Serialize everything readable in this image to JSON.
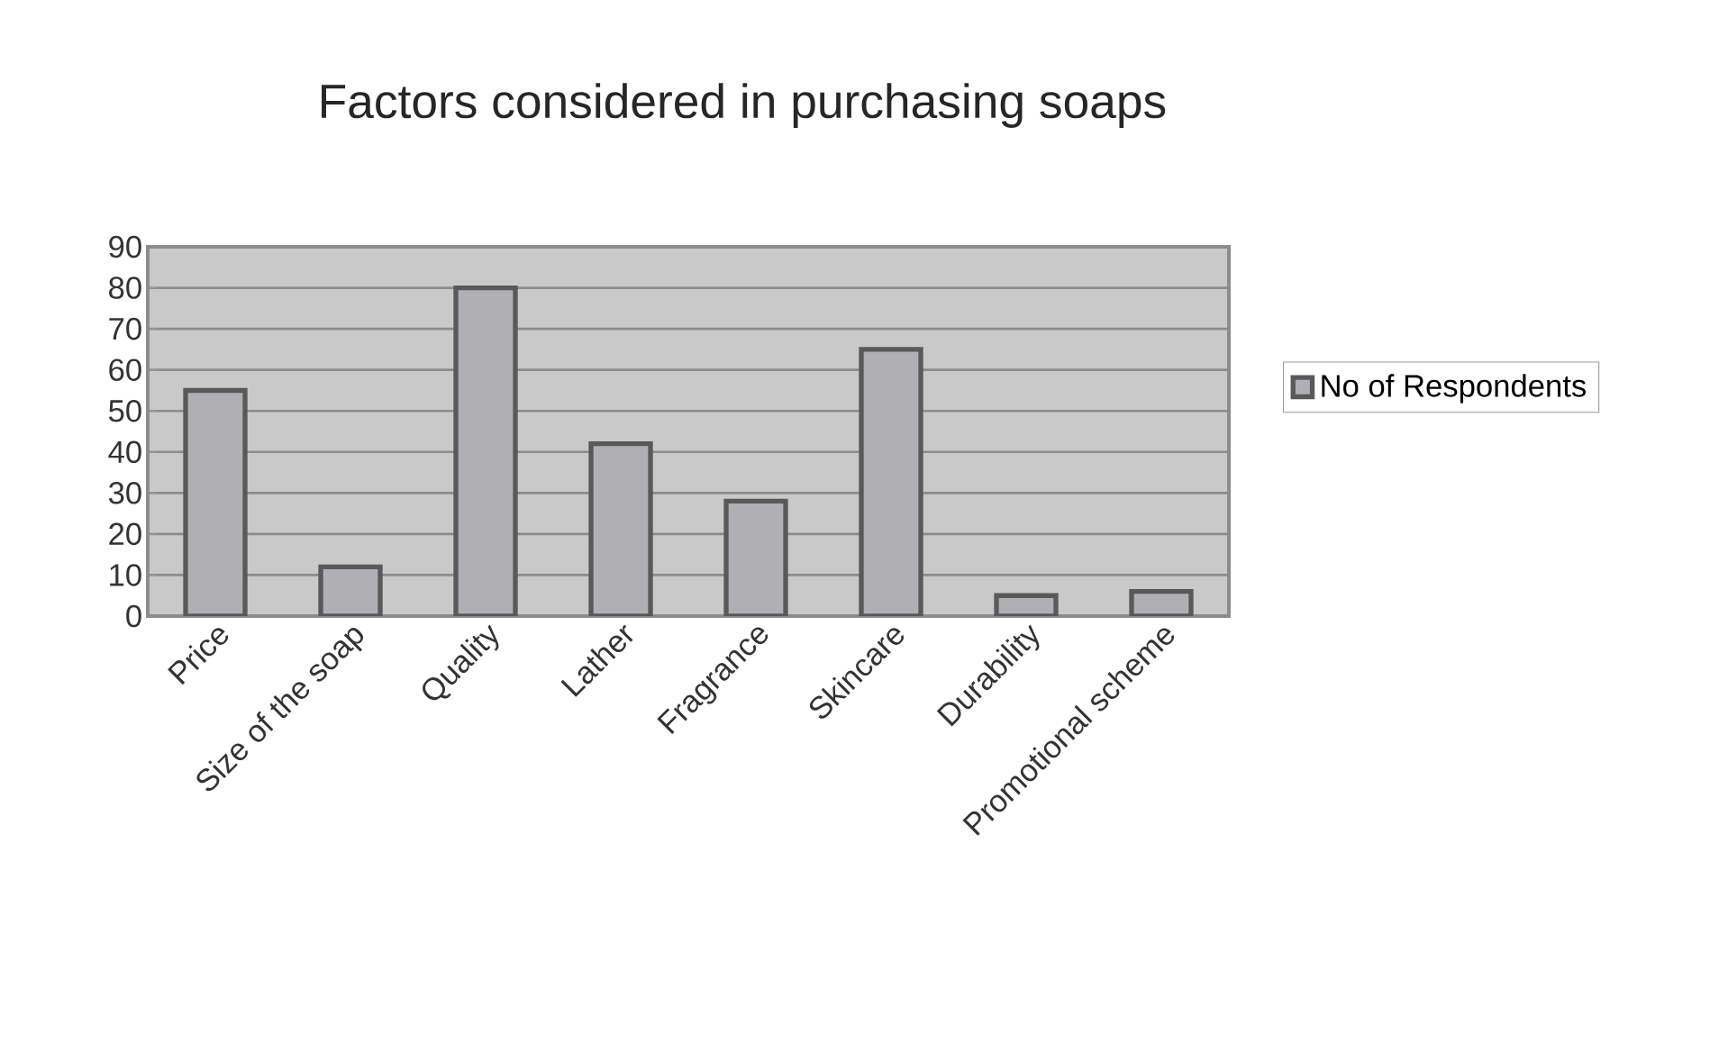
{
  "chart_data": {
    "type": "bar",
    "title": "Factors considered in purchasing soaps",
    "categories": [
      "Price",
      "Size of the soap",
      "Quality",
      "Lather",
      "Fragrance",
      "Skincare",
      "Durability",
      "Promotional scheme"
    ],
    "series": [
      {
        "name": "No of Respondents",
        "color": "#b0b0b4",
        "values": [
          55,
          12,
          80,
          42,
          28,
          65,
          5,
          6
        ]
      }
    ],
    "ylim": [
      0,
      90
    ],
    "yticks": [
      0,
      10,
      20,
      30,
      40,
      50,
      60,
      70,
      80,
      90
    ],
    "grid": "y",
    "legend": "right"
  }
}
